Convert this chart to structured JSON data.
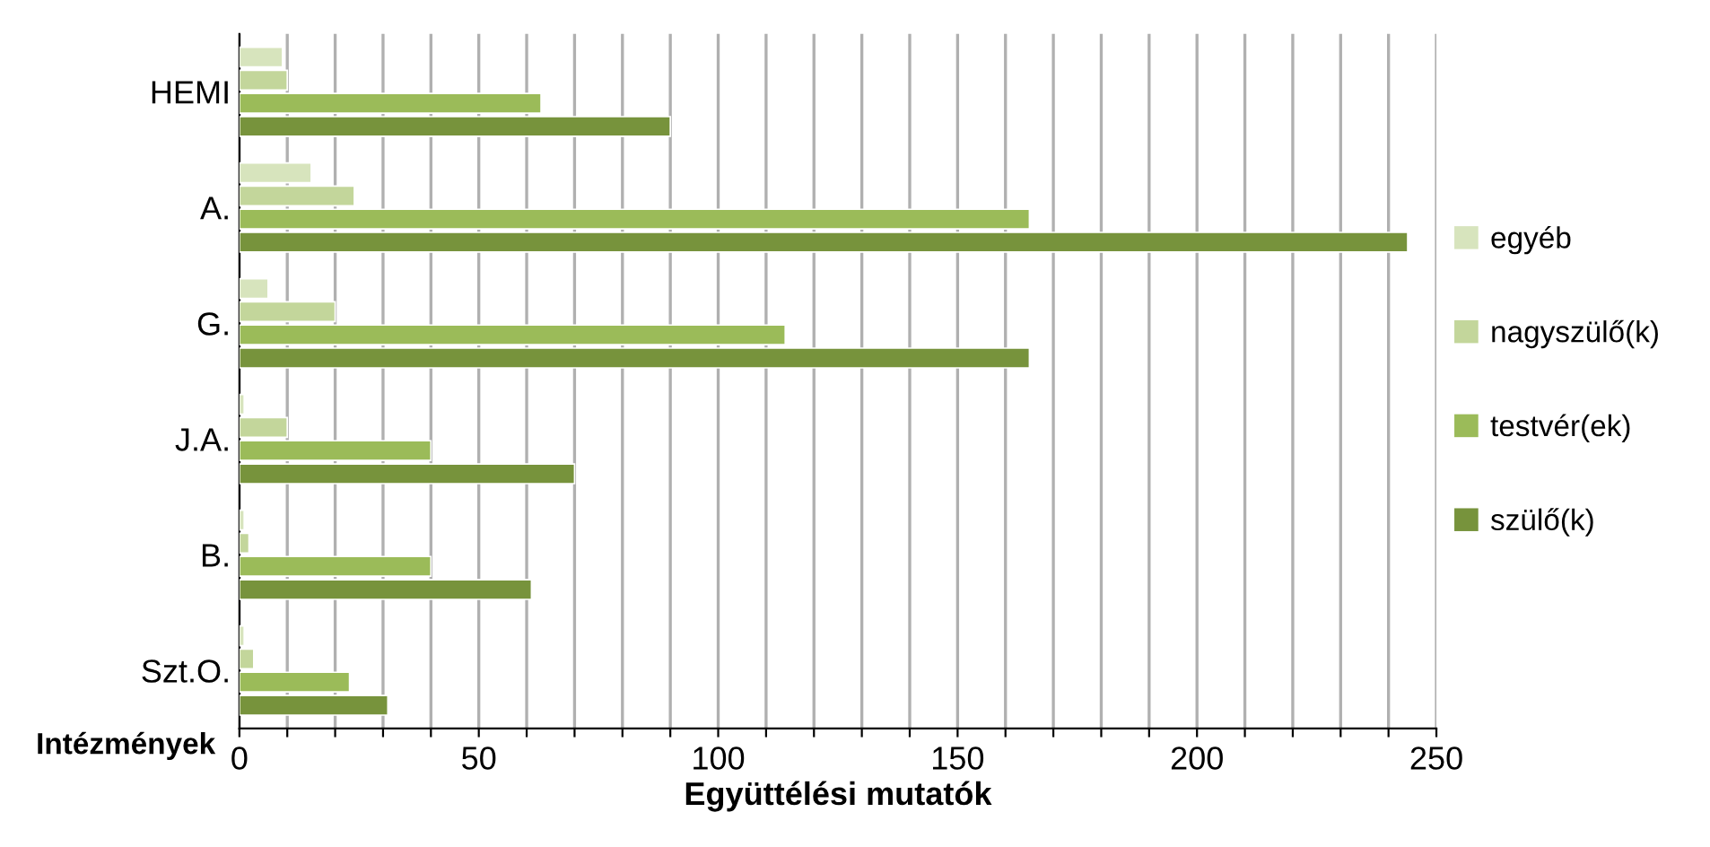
{
  "chart_data": {
    "type": "bar",
    "orientation": "horizontal",
    "xlabel": "Együttélési mutatók",
    "ylabel": "Intézmények",
    "categories": [
      "HEMI",
      "A.",
      "G.",
      "J.A.",
      "B.",
      "Szt.O."
    ],
    "series": [
      {
        "name": "egyéb",
        "color": "#d7e4bd",
        "values": [
          9,
          15,
          6,
          1,
          1,
          1
        ]
      },
      {
        "name": "nagyszülő(k)",
        "color": "#c3d69b",
        "values": [
          10,
          24,
          20,
          10,
          2,
          3
        ]
      },
      {
        "name": "testvér(ek)",
        "color": "#9bbb59",
        "values": [
          63,
          165,
          114,
          40,
          40,
          23
        ]
      },
      {
        "name": "szülő(k)",
        "color": "#77933c",
        "values": [
          90,
          244,
          165,
          70,
          61,
          31
        ]
      }
    ],
    "xlim": [
      0,
      250
    ],
    "xticks": [
      0,
      {
        "value": 10,
        "label": null
      },
      {
        "value": 20,
        "label": null
      },
      {
        "value": 30,
        "label": null
      },
      {
        "value": 40,
        "label": null
      },
      50,
      {
        "value": 60,
        "label": null
      },
      {
        "value": 70,
        "label": null
      },
      {
        "value": 80,
        "label": null
      },
      {
        "value": 90,
        "label": null
      },
      100,
      {
        "value": 110,
        "label": null
      },
      {
        "value": 120,
        "label": null
      },
      {
        "value": 130,
        "label": null
      },
      {
        "value": 140,
        "label": null
      },
      150,
      {
        "value": 160,
        "label": null
      },
      {
        "value": 170,
        "label": null
      },
      {
        "value": 180,
        "label": null
      },
      {
        "value": 190,
        "label": null
      },
      200,
      {
        "value": 210,
        "label": null
      },
      {
        "value": 220,
        "label": null
      },
      {
        "value": 230,
        "label": null
      },
      {
        "value": 240,
        "label": null
      },
      250
    ],
    "grid": "x",
    "legend": "right"
  }
}
